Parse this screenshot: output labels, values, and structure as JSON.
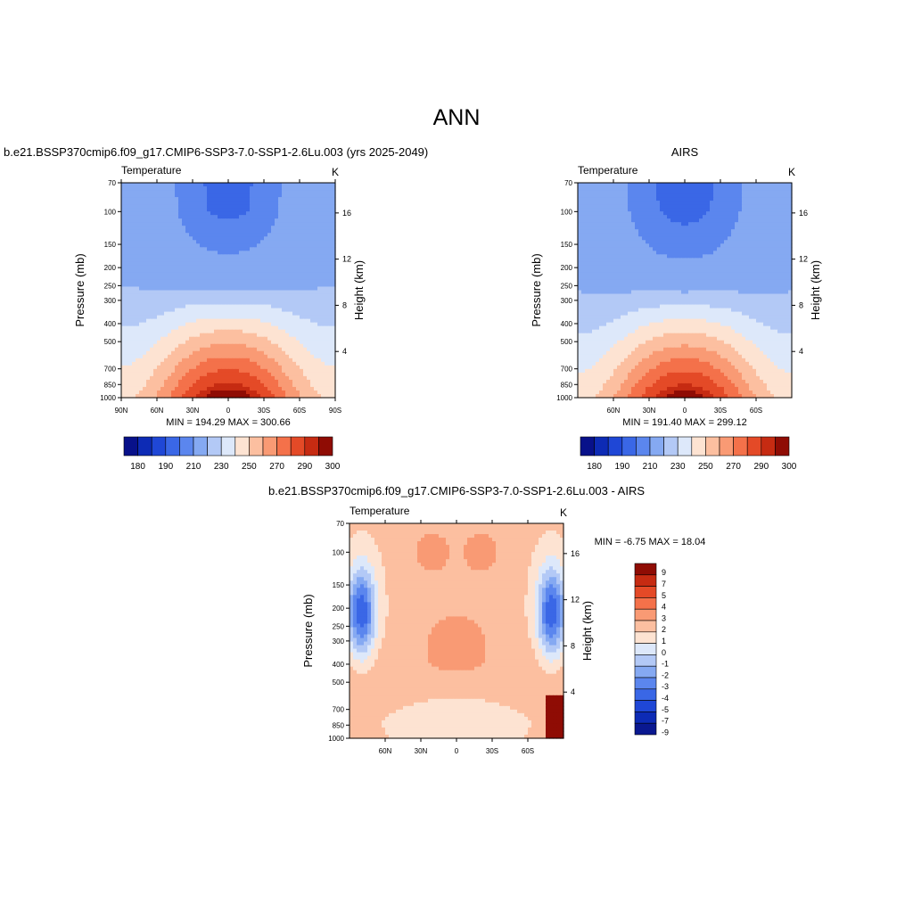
{
  "page": {
    "main_title": "ANN",
    "left_title": "b.e21.BSSP370cmip6.f09_g17.CMIP6-SSP3-7.0-SSP1-2.6Lu.003 (yrs 2025-2049)",
    "right_title": "AIRS",
    "bottom_title": "b.e21.BSSP370cmip6.f09_g17.CMIP6-SSP3-7.0-SSP1-2.6Lu.003 - AIRS"
  },
  "colors": {
    "abs_palette": [
      "#08118a",
      "#0d2bb5",
      "#1f47d6",
      "#3a67e6",
      "#5b86ee",
      "#85a9f2",
      "#b3c9f6",
      "#dde8fa",
      "#fde3d2",
      "#fcbfa0",
      "#f99a74",
      "#f4714a",
      "#e44a27",
      "#c62b12",
      "#8f0c04"
    ],
    "diff_palette": [
      "#0a1890",
      "#0d2bb5",
      "#1f47d6",
      "#3a67e6",
      "#5b86ee",
      "#85a9f2",
      "#b3c9f6",
      "#dde8fa",
      "#fde3d2",
      "#fcbfa0",
      "#f99a74",
      "#f4714a",
      "#e44a27",
      "#c62b12",
      "#8f0c04"
    ]
  },
  "chart_data": [
    {
      "type": "heatmap",
      "id": "model",
      "title": "",
      "left_label": "Temperature",
      "right_label": "K",
      "ylabel": "Pressure (mb)",
      "y2label": "Height (km)",
      "x_ticks": [
        "90N",
        "60N",
        "30N",
        "0",
        "30S",
        "60S",
        "90S"
      ],
      "x_range": [
        90,
        -90
      ],
      "y_ticks": [
        70,
        100,
        150,
        200,
        250,
        300,
        400,
        500,
        700,
        850,
        1000
      ],
      "y_range": [
        70,
        1000
      ],
      "y_scale": "log",
      "y2_ticks": [
        4,
        8,
        12,
        16
      ],
      "stats": "MIN = 194.29  MAX = 300.66",
      "min": 194.29,
      "max": 300.66,
      "colorbar_labels": [
        "180",
        "190",
        "210",
        "230",
        "250",
        "270",
        "290",
        "300"
      ],
      "colorbar_levels": [
        180,
        185,
        190,
        200,
        210,
        220,
        230,
        240,
        250,
        260,
        270,
        280,
        290,
        295,
        300
      ]
    },
    {
      "type": "heatmap",
      "id": "obs",
      "title": "AIRS",
      "left_label": "Temperature",
      "right_label": "K",
      "ylabel": "Pressure (mb)",
      "y2label": "Height (km)",
      "x_ticks": [
        "60N",
        "30N",
        "0",
        "30S",
        "60S"
      ],
      "x_range": [
        90,
        -90
      ],
      "y_ticks": [
        70,
        100,
        150,
        200,
        250,
        300,
        400,
        500,
        700,
        850,
        1000
      ],
      "y_range": [
        70,
        1000
      ],
      "y_scale": "log",
      "y2_ticks": [
        4,
        8,
        12,
        16
      ],
      "stats": "MIN = 191.40  MAX = 299.12",
      "min": 191.4,
      "max": 299.12,
      "colorbar_labels": [
        "180",
        "190",
        "210",
        "230",
        "250",
        "270",
        "290",
        "300"
      ],
      "colorbar_levels": [
        180,
        185,
        190,
        200,
        210,
        220,
        230,
        240,
        250,
        260,
        270,
        280,
        290,
        295,
        300
      ]
    },
    {
      "type": "heatmap",
      "id": "diff",
      "title": "b.e21.BSSP370cmip6.f09_g17.CMIP6-SSP3-7.0-SSP1-2.6Lu.003 - AIRS",
      "left_label": "Temperature",
      "right_label": "K",
      "ylabel": "Pressure (mb)",
      "y2label": "Height (km)",
      "x_ticks": [
        "60N",
        "30N",
        "0",
        "30S",
        "60S"
      ],
      "x_range": [
        90,
        -90
      ],
      "y_ticks": [
        70,
        100,
        150,
        200,
        250,
        300,
        400,
        500,
        700,
        850,
        1000
      ],
      "y_range": [
        70,
        1000
      ],
      "y_scale": "log",
      "y2_ticks": [
        4,
        8,
        12,
        16
      ],
      "stats": "MIN =  -6.75  MAX =  18.04",
      "min": -6.75,
      "max": 18.04,
      "colorbar_labels": [
        "9",
        "7",
        "5",
        "4",
        "3",
        "2",
        "1",
        "0",
        "-1",
        "-2",
        "-3",
        "-4",
        "-5",
        "-7",
        "-9"
      ],
      "colorbar_levels": [
        -9,
        -7,
        -5,
        -4,
        -3,
        -2,
        -1,
        0,
        1,
        2,
        3,
        4,
        5,
        7,
        9
      ]
    }
  ]
}
